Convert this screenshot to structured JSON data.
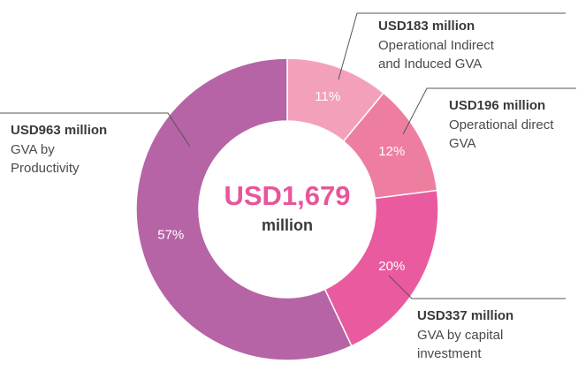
{
  "chart_data": {
    "type": "donut",
    "categories": [
      "Operational Indirect\nand Induced GVA",
      "Operational direct\nGVA",
      "GVA by capital\ninvestment",
      "GVA by\nProductivity"
    ],
    "values": [
      11,
      12,
      20,
      57
    ],
    "value_labels": [
      "11%",
      "12%",
      "20%",
      "57%"
    ],
    "amounts": [
      "USD183 million",
      "USD196 million",
      "USD337 million",
      "USD963 million"
    ],
    "colors": [
      "#f3a1ba",
      "#ee7e9f",
      "#e95b9e",
      "#b664a6"
    ],
    "center_label": [
      "USD1,679",
      "million"
    ]
  }
}
